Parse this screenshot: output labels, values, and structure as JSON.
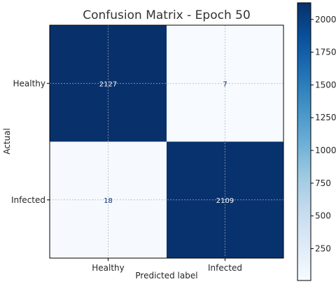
{
  "chart_data": {
    "type": "heatmap",
    "title": "Confusion Matrix - Epoch 50",
    "xlabel": "Predicted label",
    "ylabel": "Actual",
    "x_categories": [
      "Healthy",
      "Infected"
    ],
    "y_categories": [
      "Healthy",
      "Infected"
    ],
    "values": [
      [
        2127,
        7
      ],
      [
        18,
        2109
      ]
    ],
    "colormap": "Blues",
    "vmin": 7,
    "vmax": 2127,
    "grid": true,
    "colorbar_ticks": [
      250,
      500,
      750,
      1000,
      1250,
      1500,
      1750,
      2000
    ],
    "colors": {
      "low": "#f7fbff",
      "high": "#08306b",
      "text_dark": "#08306b",
      "text_light": "#f7fbff"
    }
  }
}
